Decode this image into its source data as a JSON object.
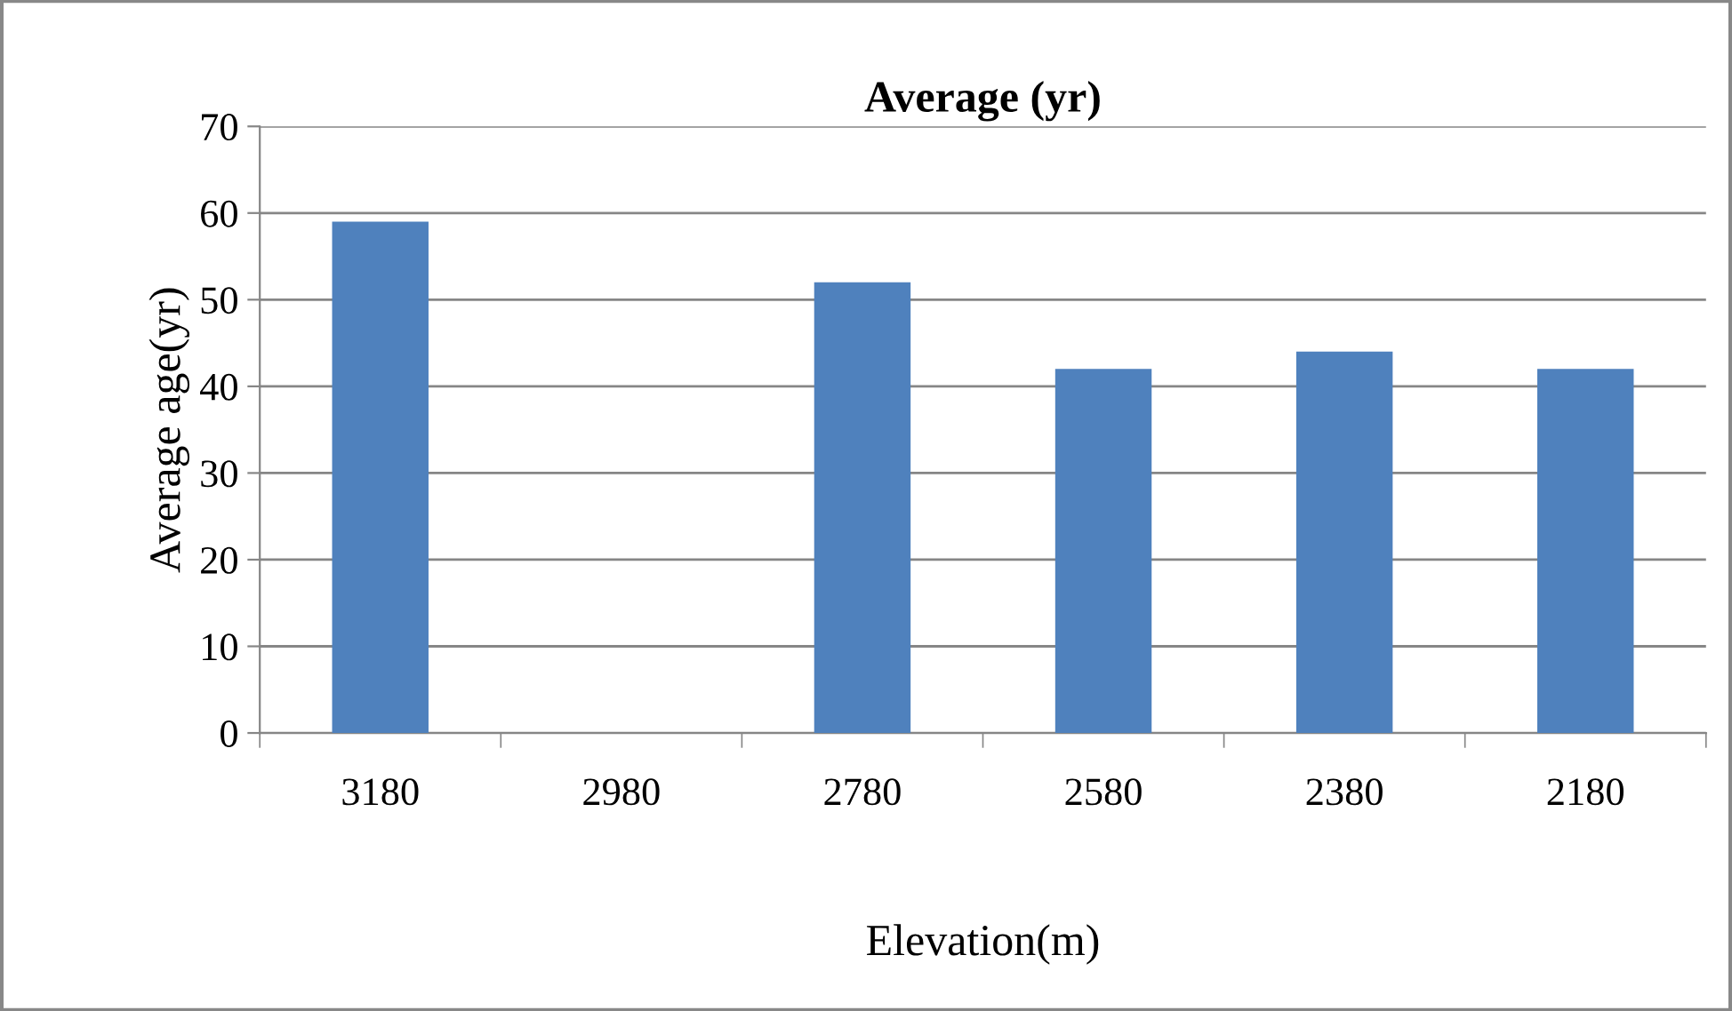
{
  "chart_data": {
    "type": "bar",
    "title": "Average (yr)",
    "xlabel": "Elevation(m)",
    "ylabel": "Average age(yr)",
    "categories": [
      "3180",
      "2980",
      "2780",
      "2580",
      "2380",
      "2180"
    ],
    "values": [
      59,
      null,
      52,
      42,
      44,
      42
    ],
    "color": "#4f81bd",
    "ylim": [
      0,
      70
    ],
    "yticks": [
      0,
      10,
      20,
      30,
      40,
      50,
      60,
      70
    ],
    "grid": "y",
    "legend": false
  }
}
